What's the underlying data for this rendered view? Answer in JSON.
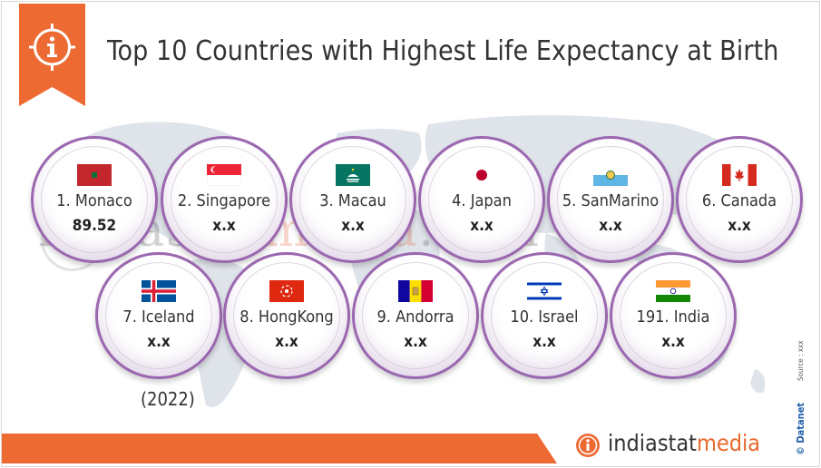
{
  "title": "Top 10 Countries with Highest Life Expectancy at Birth",
  "year": "(2022)",
  "source": "Source : xxx",
  "datanet": "© Datanet",
  "watermark": {
    "left": "indiastat",
    "accent": "media",
    "right": ".com"
  },
  "brand": {
    "name": "indiastat",
    "accent": "media"
  },
  "colors": {
    "orange": "#ee6a33",
    "purple": "#9b67b0",
    "title": "#333333"
  },
  "icons": {
    "info": "info-icon",
    "brand": "brand-logo-icon"
  },
  "countries": [
    {
      "label": "1. Monaco",
      "value": "89.52",
      "flag": "monaco"
    },
    {
      "label": "2. Singapore",
      "value": "x.x",
      "flag": "singapore"
    },
    {
      "label": "3. Macau",
      "value": "x.x",
      "flag": "macau"
    },
    {
      "label": "4. Japan",
      "value": "x.x",
      "flag": "japan"
    },
    {
      "label": "5. SanMarino",
      "value": "x.x",
      "flag": "sanmarino"
    },
    {
      "label": "6. Canada",
      "value": "x.x",
      "flag": "canada"
    },
    {
      "label": "7. Iceland",
      "value": "x.x",
      "flag": "iceland"
    },
    {
      "label": "8. HongKong",
      "value": "x.x",
      "flag": "hongkong"
    },
    {
      "label": "9. Andorra",
      "value": "x.x",
      "flag": "andorra"
    },
    {
      "label": "10. Israel",
      "value": "x.x",
      "flag": "israel"
    },
    {
      "label": "191. India",
      "value": "x.x",
      "flag": "india"
    }
  ]
}
